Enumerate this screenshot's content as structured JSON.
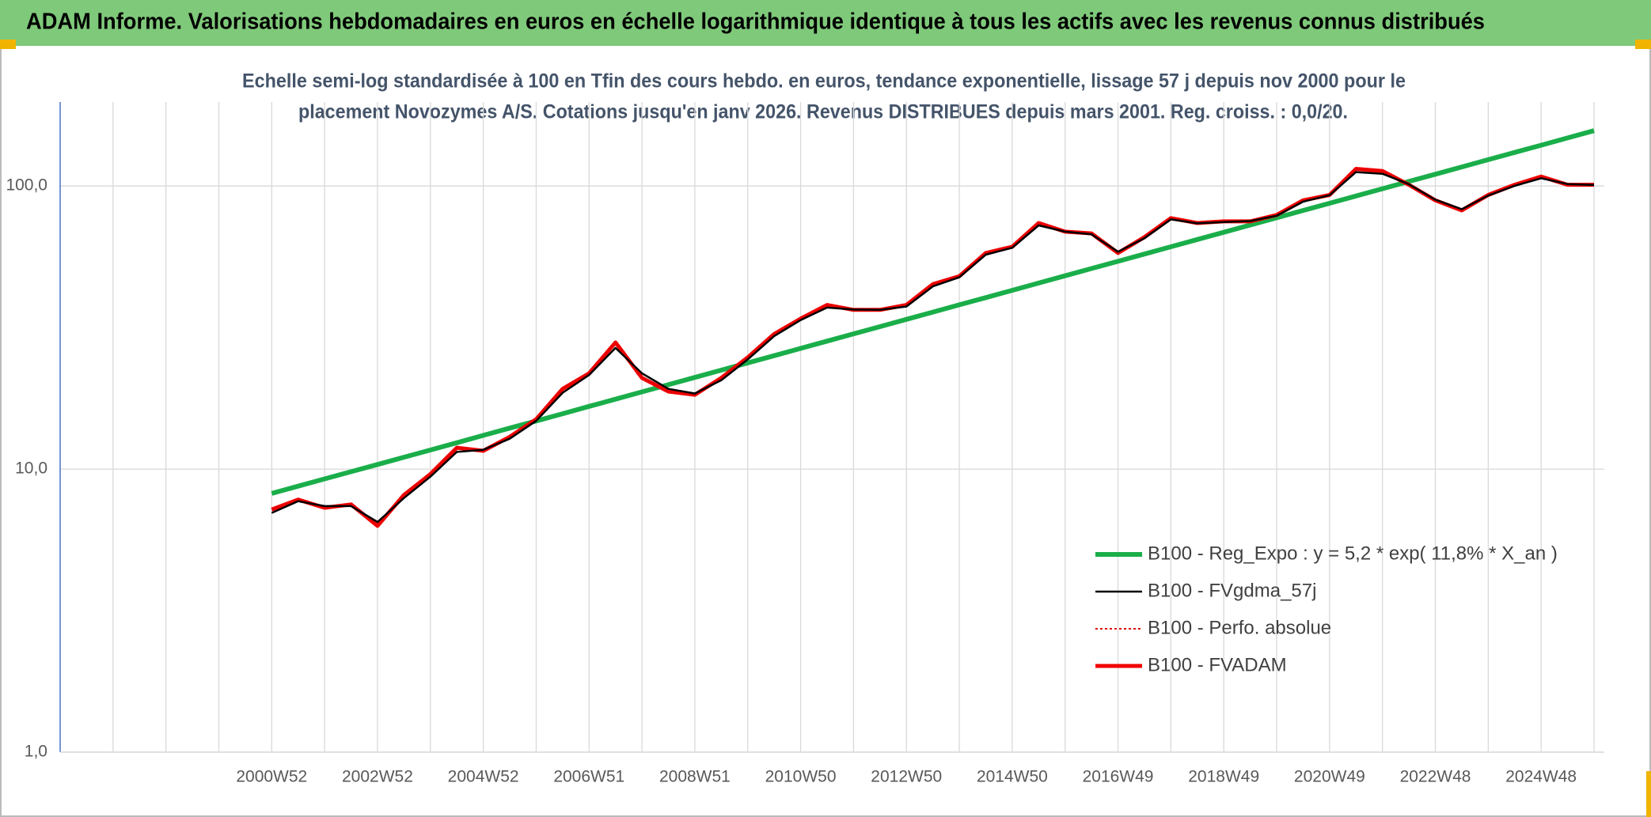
{
  "header": {
    "title": "ADAM Informe. Valorisations hebdomadaires en euros en échelle logarithmique identique à tous les actifs avec les revenus connus distribués"
  },
  "chart_data": {
    "type": "line",
    "subtitle": [
      "Echelle semi-log standardisée à 100 en Tfin des cours hebdo. en euros, tendance exponentielle, lissage 57 j depuis nov 2000 pour le",
      "placement Novozymes A/S. Cotations jusqu'en janv 2026. Revenus DISTRIBUES depuis mars 2001. Reg. croiss. : 0,0/20."
    ],
    "categories": [
      null,
      null,
      null,
      null,
      null,
      null,
      null,
      null,
      "2000W52",
      null,
      null,
      null,
      "2002W52",
      null,
      null,
      null,
      "2004W52",
      null,
      null,
      null,
      "2006W51",
      null,
      null,
      null,
      "2008W51",
      null,
      null,
      null,
      "2010W50",
      null,
      null,
      null,
      "2012W50",
      null,
      null,
      null,
      "2014W50",
      null,
      null,
      null,
      "2016W49",
      null,
      null,
      null,
      "2018W49",
      null,
      null,
      null,
      "2020W49",
      null,
      null,
      null,
      "2022W48",
      null,
      null,
      null,
      "2024W48",
      null,
      null
    ],
    "log_scale": true,
    "ylim": [
      1,
      198
    ],
    "yticks": [
      {
        "value": 1,
        "label": "1,0"
      },
      {
        "value": 10,
        "label": "10,0"
      },
      {
        "value": 100,
        "label": "100,0"
      }
    ],
    "grid": true,
    "legend": "lower right",
    "series": [
      {
        "name": "B100 - Reg_Expo : y = 5,2 * exp( 11,8% *  X_an )",
        "color": "#1aae4a",
        "style": "solid",
        "width": 6,
        "values": [
          null,
          null,
          null,
          null,
          null,
          null,
          null,
          null,
          8.2,
          8.7,
          9.23,
          9.79,
          10.38,
          11.01,
          11.68,
          12.39,
          13.15,
          13.95,
          14.79,
          15.69,
          16.65,
          17.66,
          18.73,
          19.87,
          21.08,
          22.36,
          23.72,
          25.16,
          26.69,
          28.32,
          30.04,
          31.86,
          33.8,
          35.86,
          38.04,
          40.35,
          42.8,
          45.41,
          48.17,
          51.1,
          54.2,
          57.5,
          61.0,
          64.71,
          68.64,
          72.81,
          77.24,
          81.94,
          86.92,
          92.21,
          97.81,
          103.76,
          110.07,
          116.77,
          123.87,
          131.4,
          139.39,
          147.87,
          156.86
        ]
      },
      {
        "name": "B100 - FVgdma_57j",
        "color": "#000000",
        "style": "solid",
        "width": 2.5,
        "values": [
          null,
          null,
          null,
          null,
          null,
          null,
          null,
          null,
          7.0,
          7.7,
          7.4,
          7.4,
          6.5,
          7.9,
          9.4,
          11.5,
          11.7,
          12.8,
          14.8,
          18.6,
          21.5,
          26.8,
          21.8,
          19.2,
          18.5,
          20.6,
          24.4,
          29.5,
          33.6,
          37.2,
          36.6,
          36.5,
          37.5,
          44.2,
          47.6,
          57.2,
          60.5,
          72.6,
          69.0,
          67.5,
          58.6,
          65.4,
          76.2,
          73.8,
          74.6,
          75.2,
          78.5,
          88.0,
          92.8,
          112.0,
          110.5,
          101.5,
          89.5,
          82.8,
          92.5,
          100.2,
          106.5,
          101.6,
          100.8
        ]
      },
      {
        "name": "B100 - Perfo. absolue",
        "color": "#e00000",
        "style": "dotted",
        "width": 2,
        "values": [
          null,
          null,
          null,
          null,
          null,
          null,
          null,
          null,
          7.2,
          7.8,
          7.3,
          7.5,
          6.3,
          8.1,
          9.6,
          11.9,
          11.6,
          13,
          15,
          19.2,
          21.8,
          28,
          21,
          18.8,
          18.3,
          21,
          24.8,
          30,
          34,
          38,
          36.5,
          36.5,
          38,
          45,
          48,
          58,
          61,
          74,
          69,
          68,
          58,
          66,
          77,
          74,
          75,
          75,
          79,
          89,
          93,
          115,
          113,
          101,
          89,
          82,
          93,
          101,
          108,
          101,
          101
        ]
      },
      {
        "name": "B100 - FVADAM",
        "color": "#f00000",
        "style": "solid",
        "width": 5,
        "values": [
          null,
          null,
          null,
          null,
          null,
          null,
          null,
          null,
          7.2,
          7.8,
          7.3,
          7.5,
          6.3,
          8.1,
          9.6,
          11.9,
          11.6,
          13,
          15,
          19.2,
          21.8,
          28,
          21,
          18.8,
          18.3,
          21,
          24.8,
          30,
          34,
          38,
          36.5,
          36.5,
          38,
          45,
          48,
          58,
          61,
          74,
          69,
          68,
          58,
          66,
          77,
          74,
          75,
          75,
          79,
          89,
          93,
          115,
          113,
          101,
          89,
          82,
          93,
          101,
          108,
          101,
          101
        ]
      }
    ]
  }
}
